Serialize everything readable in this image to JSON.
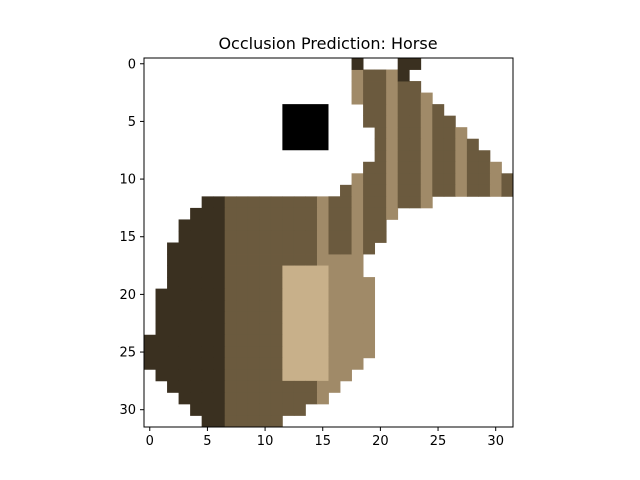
{
  "chart_data": {
    "type": "heatmap",
    "title": "Occlusion Prediction: Horse",
    "xlabel": "",
    "ylabel": "",
    "image_size": [
      32,
      32
    ],
    "xlim": [
      -0.5,
      31.5
    ],
    "ylim": [
      31.5,
      -0.5
    ],
    "x_ticks": [
      0,
      5,
      10,
      15,
      20,
      25,
      30
    ],
    "y_ticks": [
      0,
      5,
      10,
      15,
      20,
      25,
      30
    ],
    "occlusion_patch": {
      "x_start": 12,
      "x_end": 15,
      "y_start": 4,
      "y_end": 7,
      "color": "#000000"
    },
    "image_description": "low-resolution brown horse on a white background",
    "colors": {
      "background": "#ffffff",
      "dark_brown": "#3a3020",
      "mid_brown": "#6b5a3e",
      "light_brown": "#a08a68",
      "tan": "#c8b08a",
      "patch": "#000000"
    }
  }
}
